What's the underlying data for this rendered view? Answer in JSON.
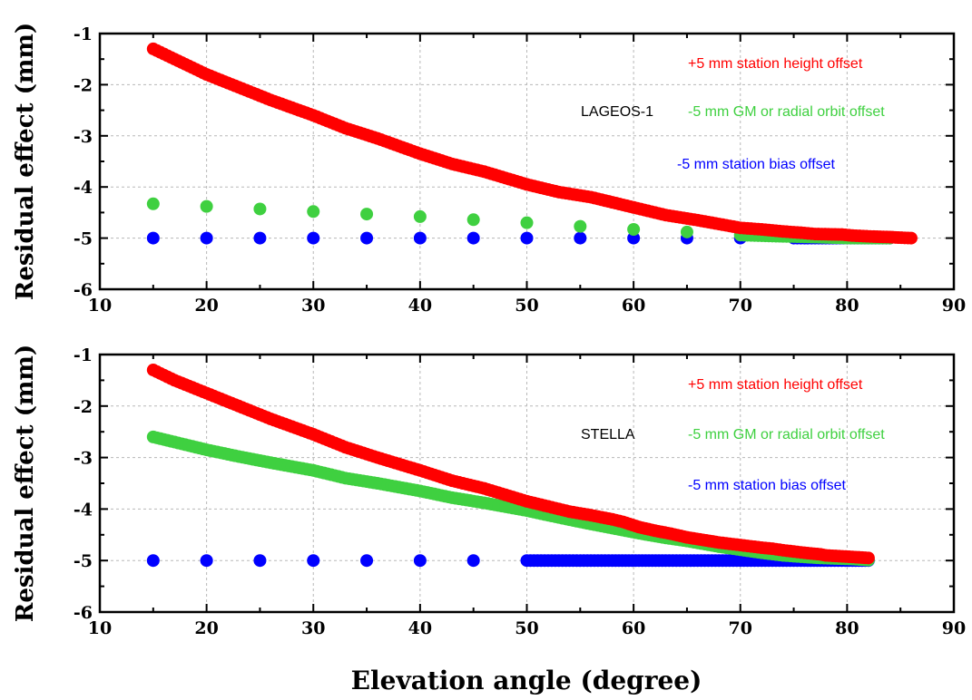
{
  "chart_data": [
    {
      "type": "scatter",
      "annotation_label": "LAGEOS-1",
      "ylabel": "Residual effect (mm)",
      "xlim": [
        10,
        90
      ],
      "ylim": [
        -6,
        -1
      ],
      "xticks": [
        10,
        20,
        30,
        40,
        50,
        60,
        70,
        80,
        90
      ],
      "yticks": [
        -1,
        -2,
        -3,
        -4,
        -5,
        -6
      ],
      "grid": true,
      "series": [
        {
          "name": "+5 mm station height offset",
          "color": "#ff0000",
          "x": [
            15,
            17,
            20,
            23,
            26,
            30,
            33,
            36,
            40,
            43,
            46,
            50,
            53,
            56,
            60,
            63,
            66,
            70,
            72,
            74,
            76,
            77,
            79.5,
            80.5,
            81.5,
            82.5,
            84,
            84.8,
            86
          ],
          "y": [
            -1.3,
            -1.5,
            -1.8,
            -2.05,
            -2.3,
            -2.6,
            -2.85,
            -3.05,
            -3.35,
            -3.55,
            -3.7,
            -3.95,
            -4.1,
            -4.2,
            -4.4,
            -4.55,
            -4.65,
            -4.8,
            -4.83,
            -4.87,
            -4.9,
            -4.92,
            -4.93,
            -4.95,
            -4.96,
            -4.97,
            -4.98,
            -4.99,
            -5.0
          ]
        },
        {
          "name": "-5 mm GM or radial orbit offset",
          "color": "#3fd040",
          "x": [
            15,
            20,
            25,
            30,
            35,
            40,
            45,
            50,
            55,
            60,
            65,
            70,
            73,
            75,
            77,
            80,
            82,
            84
          ],
          "y": [
            -4.33,
            -4.38,
            -4.43,
            -4.48,
            -4.53,
            -4.58,
            -4.64,
            -4.7,
            -4.77,
            -4.83,
            -4.88,
            -4.94,
            -4.96,
            -4.97,
            -4.98,
            -5.0,
            -5.0,
            -5.0
          ]
        },
        {
          "name": "-5 mm station bias offset",
          "color": "#0000ff",
          "x": [
            15,
            20,
            25,
            30,
            35,
            40,
            45,
            50,
            55,
            60,
            65,
            70,
            75,
            77,
            80,
            82,
            84
          ],
          "y": [
            -5,
            -5,
            -5,
            -5,
            -5,
            -5,
            -5,
            -5,
            -5,
            -5,
            -5,
            -5,
            -5,
            -5,
            -5,
            -5,
            -5
          ]
        }
      ]
    },
    {
      "type": "scatter",
      "annotation_label": "STELLA",
      "ylabel": "Residual effect (mm)",
      "xlabel": "Elevation angle (degree)",
      "xlim": [
        10,
        90
      ],
      "ylim": [
        -6,
        -1
      ],
      "xticks": [
        10,
        20,
        30,
        40,
        50,
        60,
        70,
        80,
        90
      ],
      "yticks": [
        -1,
        -2,
        -3,
        -4,
        -5,
        -6
      ],
      "grid": true,
      "series": [
        {
          "name": "+5 mm station height offset",
          "color": "#ff0000",
          "x": [
            15,
            17,
            20,
            23,
            26,
            30,
            33,
            36,
            40,
            43,
            46,
            50,
            52,
            54,
            56,
            58,
            59,
            60.5,
            62,
            63.5,
            65,
            66.5,
            68,
            72,
            73,
            74,
            76,
            77.5,
            78,
            80.5,
            82
          ],
          "y": [
            -1.3,
            -1.5,
            -1.75,
            -2.0,
            -2.25,
            -2.55,
            -2.8,
            -3.0,
            -3.25,
            -3.45,
            -3.6,
            -3.85,
            -3.95,
            -4.05,
            -4.12,
            -4.2,
            -4.25,
            -4.35,
            -4.42,
            -4.48,
            -4.55,
            -4.6,
            -4.65,
            -4.75,
            -4.77,
            -4.8,
            -4.85,
            -4.88,
            -4.9,
            -4.93,
            -4.95
          ]
        },
        {
          "name": "-5 mm GM or radial orbit offset",
          "color": "#3fd040",
          "x": [
            15,
            17,
            20,
            23,
            26,
            30,
            33,
            36,
            40,
            43,
            46,
            50,
            52,
            55,
            58,
            60.5,
            63,
            65,
            68,
            72,
            74,
            76,
            77.5,
            80.5,
            82
          ],
          "y": [
            -2.6,
            -2.7,
            -2.85,
            -2.98,
            -3.1,
            -3.25,
            -3.4,
            -3.5,
            -3.65,
            -3.78,
            -3.88,
            -4.03,
            -4.12,
            -4.25,
            -4.37,
            -4.47,
            -4.56,
            -4.62,
            -4.73,
            -4.85,
            -4.9,
            -4.93,
            -4.95,
            -4.97,
            -4.99
          ]
        },
        {
          "name": "-5 mm station bias offset",
          "color": "#0000ff",
          "x": [
            15,
            20,
            25,
            30,
            35,
            40,
            45,
            50,
            52,
            55,
            58,
            60.5,
            63,
            65,
            68,
            72,
            74,
            76,
            77.5,
            80.5,
            82
          ],
          "y": [
            -5,
            -5,
            -5,
            -5,
            -5,
            -5,
            -5,
            -5,
            -5,
            -5,
            -5,
            -5,
            -5,
            -5,
            -5,
            -5,
            -5,
            -5,
            -5,
            -5,
            -5
          ]
        }
      ]
    }
  ]
}
